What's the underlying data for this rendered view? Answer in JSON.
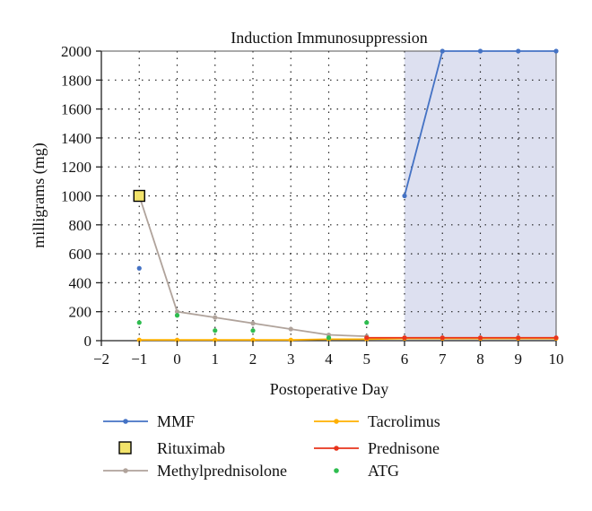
{
  "chart_data": {
    "type": "line",
    "title": "Induction Immunosuppression",
    "xlabel": "Postoperative Day",
    "ylabel": "milligrams (mg)",
    "xlim": [
      -2,
      10
    ],
    "ylim": [
      0,
      2000
    ],
    "x_ticks": [
      -2,
      -1,
      0,
      1,
      2,
      3,
      4,
      5,
      6,
      7,
      8,
      9,
      10
    ],
    "y_ticks": [
      0,
      200,
      400,
      600,
      800,
      1000,
      1200,
      1400,
      1600,
      1800,
      2000
    ],
    "grid": "dotted",
    "shaded_region": {
      "x_start": 6,
      "x_end": 10,
      "color": "#dde0f0"
    },
    "legend_position": "bottom",
    "series": [
      {
        "name": "MMF",
        "color": "#4472c4",
        "line": true,
        "marker": "dot",
        "points": [
          [
            -1,
            500
          ],
          [
            6,
            1000
          ],
          [
            7,
            2000
          ],
          [
            8,
            2000
          ],
          [
            9,
            2000
          ],
          [
            10,
            2000
          ]
        ],
        "connect_from_index": 1
      },
      {
        "name": "Rituximab",
        "color": "#f2e36b",
        "line": false,
        "marker": "square",
        "points": [
          [
            -1,
            1000
          ]
        ]
      },
      {
        "name": "Methylprednisolone",
        "color": "#b0a39b",
        "line": true,
        "marker": "dot",
        "points": [
          [
            -1,
            1000
          ],
          [
            0,
            200
          ],
          [
            1,
            160
          ],
          [
            2,
            120
          ],
          [
            3,
            80
          ],
          [
            4,
            40
          ],
          [
            5,
            30
          ]
        ]
      },
      {
        "name": "Tacrolimus",
        "color": "#ffb000",
        "line": true,
        "marker": "dot",
        "points": [
          [
            -1,
            5
          ],
          [
            0,
            5
          ],
          [
            1,
            5
          ],
          [
            2,
            5
          ],
          [
            3,
            5
          ],
          [
            4,
            10
          ],
          [
            5,
            10
          ],
          [
            6,
            15
          ],
          [
            7,
            15
          ],
          [
            8,
            15
          ],
          [
            9,
            15
          ],
          [
            10,
            15
          ]
        ]
      },
      {
        "name": "Prednisone",
        "color": "#e8341c",
        "line": true,
        "marker": "dot",
        "points": [
          [
            5,
            20
          ],
          [
            6,
            20
          ],
          [
            7,
            20
          ],
          [
            8,
            20
          ],
          [
            9,
            20
          ],
          [
            10,
            20
          ]
        ]
      },
      {
        "name": "ATG",
        "color": "#2ebd4f",
        "line": false,
        "marker": "dot",
        "points": [
          [
            -1,
            125
          ],
          [
            0,
            175
          ],
          [
            1,
            70
          ],
          [
            2,
            70
          ],
          [
            4,
            20
          ],
          [
            5,
            125
          ]
        ]
      }
    ]
  }
}
